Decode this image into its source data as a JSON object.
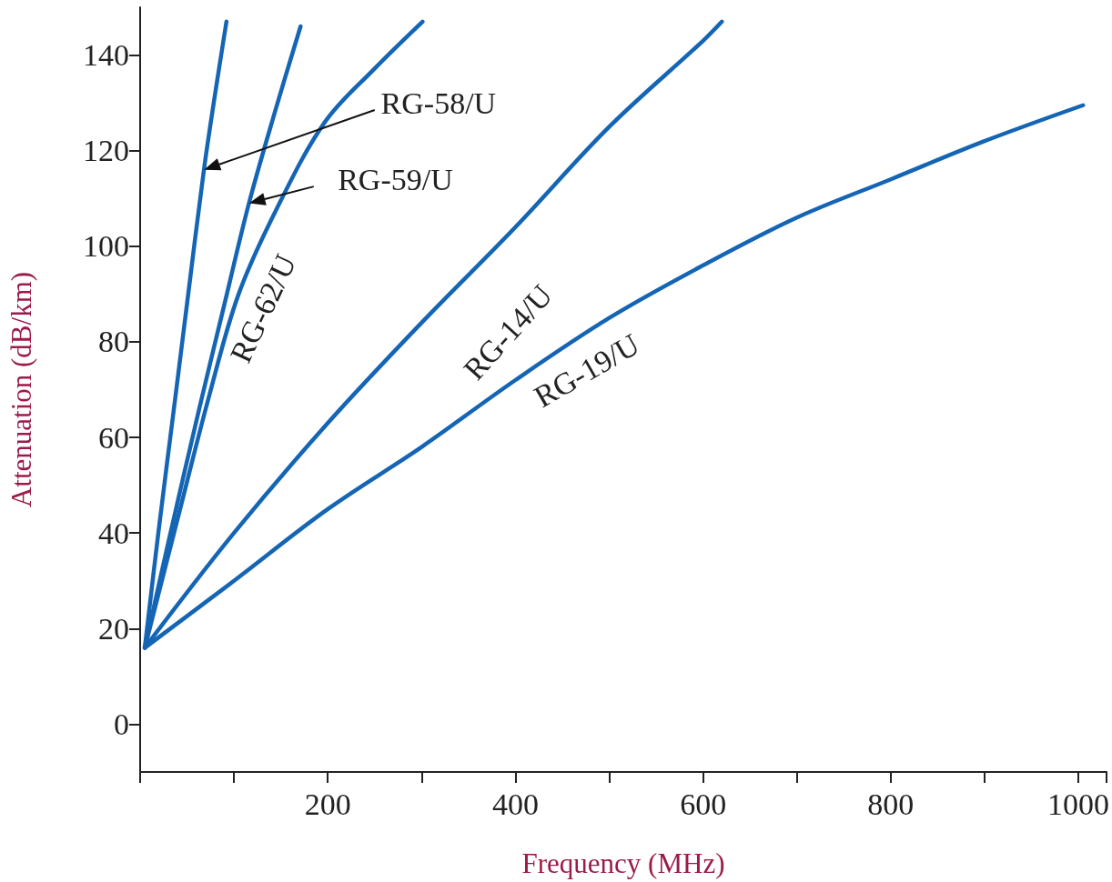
{
  "chart_data": {
    "type": "line",
    "xlabel": "Frequency (MHz)",
    "ylabel": "Attenuation (dB/km)",
    "xlim": [
      0,
      1030
    ],
    "ylim": [
      -10,
      150
    ],
    "xticks": [
      {
        "value": 100,
        "label": null
      },
      200,
      {
        "value": 300,
        "label": null
      },
      400,
      {
        "value": 500,
        "label": null
      },
      600,
      {
        "value": 700,
        "label": null
      },
      800,
      {
        "value": 900,
        "label": null
      },
      1000
    ],
    "yticks": [
      0,
      20,
      40,
      60,
      80,
      100,
      120,
      140
    ],
    "grid": false,
    "legend": false,
    "marker": "none",
    "line_style": "solid",
    "series": [
      {
        "name": "RG-58/U",
        "color": "#1565b5",
        "x": [
          5,
          20,
          36,
          50,
          68,
          80,
          92
        ],
        "values": [
          16,
          41,
          66,
          88,
          116,
          132,
          147
        ]
      },
      {
        "name": "RG-59/U",
        "color": "#1565b5",
        "x": [
          5,
          30,
          63,
          90,
          116,
          145,
          171
        ],
        "values": [
          16,
          38,
          66,
          88,
          109,
          129,
          146
        ]
      },
      {
        "name": "RG-62/U",
        "color": "#1565b5",
        "x": [
          5,
          40,
          74,
          105,
          146,
          197,
          249,
          301
        ],
        "values": [
          16,
          43,
          69,
          90,
          108,
          126,
          137,
          147
        ]
      },
      {
        "name": "RG-14/U",
        "color": "#1565b5",
        "x": [
          5,
          100,
          200,
          300,
          400,
          500,
          600,
          620
        ],
        "values": [
          16,
          40,
          63,
          84,
          104,
          125,
          143,
          147
        ]
      },
      {
        "name": "RG-19/U",
        "color": "#1565b5",
        "x": [
          5,
          100,
          200,
          300,
          400,
          500,
          600,
          700,
          800,
          900,
          1005
        ],
        "values": [
          16,
          30,
          45,
          58,
          72,
          85,
          96,
          106,
          114,
          122,
          129.5
        ]
      }
    ]
  }
}
